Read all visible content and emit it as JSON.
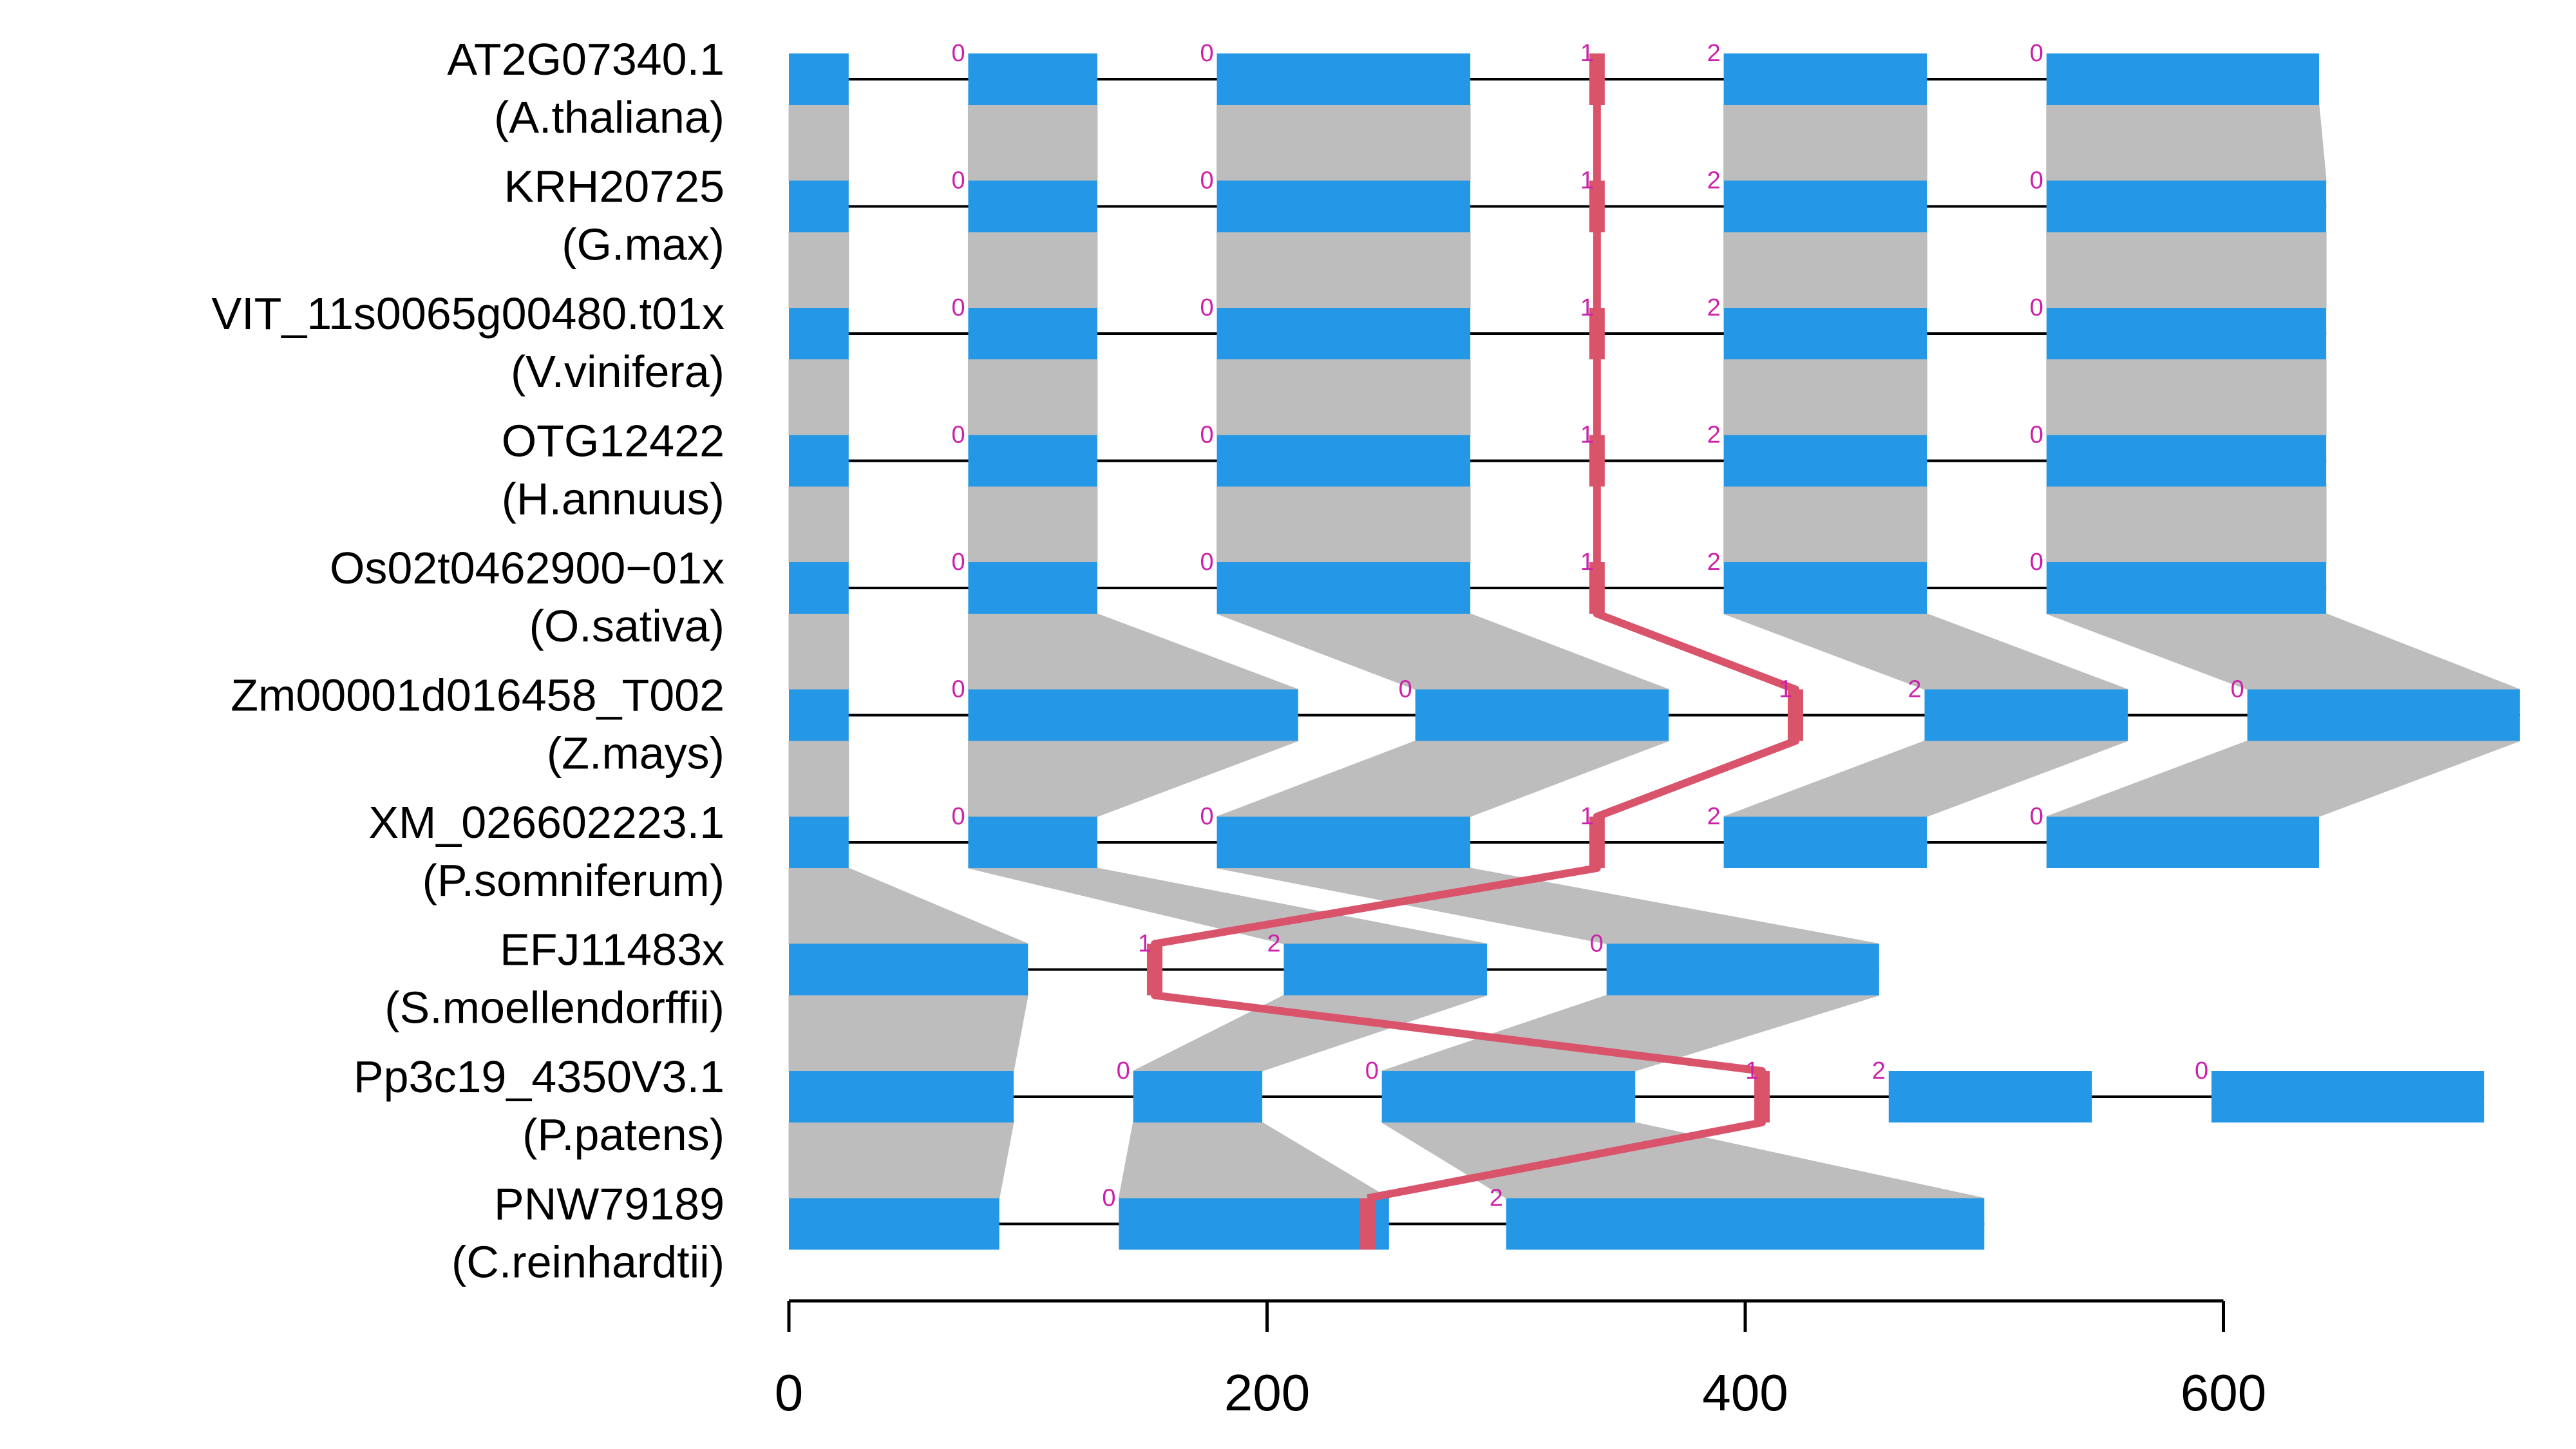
{
  "colors": {
    "exon": "#2497e6",
    "link": "#bdbdbd",
    "highlight": "#d9536b",
    "phase": "#cc22aa",
    "intron": "#000000"
  },
  "axis": {
    "ticks": [
      0,
      200,
      400,
      600
    ]
  },
  "genes": [
    {
      "id": "AT2G07340.1",
      "species": "(A.thaliana)",
      "exons": [
        [
          0,
          25
        ],
        [
          75,
          129
        ],
        [
          179,
          285
        ],
        [
          391,
          476
        ],
        [
          526,
          640
        ]
      ],
      "phases": [
        {
          "pos": 75,
          "label": "0"
        },
        {
          "pos": 179,
          "label": "0"
        },
        {
          "pos": 338,
          "label": "1"
        },
        {
          "pos": 391,
          "label": "2"
        },
        {
          "pos": 526,
          "label": "0"
        }
      ]
    },
    {
      "id": "KRH20725",
      "species": "(G.max)",
      "exons": [
        [
          0,
          25
        ],
        [
          75,
          129
        ],
        [
          179,
          285
        ],
        [
          391,
          476
        ],
        [
          526,
          643
        ]
      ],
      "phases": [
        {
          "pos": 75,
          "label": "0"
        },
        {
          "pos": 179,
          "label": "0"
        },
        {
          "pos": 338,
          "label": "1"
        },
        {
          "pos": 391,
          "label": "2"
        },
        {
          "pos": 526,
          "label": "0"
        }
      ]
    },
    {
      "id": "VIT_11s0065g00480.t01x",
      "species": "(V.vinifera)",
      "exons": [
        [
          0,
          25
        ],
        [
          75,
          129
        ],
        [
          179,
          285
        ],
        [
          391,
          476
        ],
        [
          526,
          643
        ]
      ],
      "phases": [
        {
          "pos": 75,
          "label": "0"
        },
        {
          "pos": 179,
          "label": "0"
        },
        {
          "pos": 338,
          "label": "1"
        },
        {
          "pos": 391,
          "label": "2"
        },
        {
          "pos": 526,
          "label": "0"
        }
      ]
    },
    {
      "id": "OTG12422",
      "species": "(H.annuus)",
      "exons": [
        [
          0,
          25
        ],
        [
          75,
          129
        ],
        [
          179,
          285
        ],
        [
          391,
          476
        ],
        [
          526,
          643
        ]
      ],
      "phases": [
        {
          "pos": 75,
          "label": "0"
        },
        {
          "pos": 179,
          "label": "0"
        },
        {
          "pos": 338,
          "label": "1"
        },
        {
          "pos": 391,
          "label": "2"
        },
        {
          "pos": 526,
          "label": "0"
        }
      ]
    },
    {
      "id": "Os02t0462900−01x",
      "species": "(O.sativa)",
      "exons": [
        [
          0,
          25
        ],
        [
          75,
          129
        ],
        [
          179,
          285
        ],
        [
          391,
          476
        ],
        [
          526,
          643
        ]
      ],
      "phases": [
        {
          "pos": 75,
          "label": "0"
        },
        {
          "pos": 179,
          "label": "0"
        },
        {
          "pos": 338,
          "label": "1"
        },
        {
          "pos": 391,
          "label": "2"
        },
        {
          "pos": 526,
          "label": "0"
        }
      ]
    },
    {
      "id": "Zm00001d016458_T002",
      "species": "(Z.mays)",
      "exons": [
        [
          0,
          25
        ],
        [
          75,
          213
        ],
        [
          262,
          368
        ],
        [
          475,
          560
        ],
        [
          610,
          724
        ]
      ],
      "phases": [
        {
          "pos": 75,
          "label": "0"
        },
        {
          "pos": 262,
          "label": "0"
        },
        {
          "pos": 421,
          "label": "1"
        },
        {
          "pos": 475,
          "label": "2"
        },
        {
          "pos": 610,
          "label": "0"
        }
      ]
    },
    {
      "id": "XM_026602223.1",
      "species": "(P.somniferum)",
      "exons": [
        [
          0,
          25
        ],
        [
          75,
          129
        ],
        [
          179,
          285
        ],
        [
          391,
          476
        ],
        [
          526,
          640
        ]
      ],
      "phases": [
        {
          "pos": 75,
          "label": "0"
        },
        {
          "pos": 179,
          "label": "0"
        },
        {
          "pos": 338,
          "label": "1"
        },
        {
          "pos": 391,
          "label": "2"
        },
        {
          "pos": 526,
          "label": "0"
        }
      ]
    },
    {
      "id": "EFJ11483x",
      "species": "(S.moellendorffii)",
      "exons": [
        [
          0,
          100
        ],
        [
          207,
          292
        ],
        [
          342,
          456
        ]
      ],
      "phases": [
        {
          "pos": 153,
          "label": "1"
        },
        {
          "pos": 207,
          "label": "2"
        },
        {
          "pos": 342,
          "label": "0"
        }
      ]
    },
    {
      "id": "Pp3c19_4350V3.1",
      "species": "(P.patens)",
      "exons": [
        [
          0,
          94
        ],
        [
          144,
          198
        ],
        [
          248,
          354
        ],
        [
          460,
          545
        ],
        [
          595,
          709
        ]
      ],
      "phases": [
        {
          "pos": 144,
          "label": "0"
        },
        {
          "pos": 248,
          "label": "0"
        },
        {
          "pos": 407,
          "label": "1"
        },
        {
          "pos": 460,
          "label": "2"
        },
        {
          "pos": 595,
          "label": "0"
        }
      ]
    },
    {
      "id": "PNW79189",
      "species": "(C.reinhardtii)",
      "exons": [
        [
          0,
          88
        ],
        [
          138,
          251
        ],
        [
          300,
          500
        ]
      ],
      "phases": [
        {
          "pos": 138,
          "label": "0"
        },
        {
          "pos": 300,
          "label": "2"
        }
      ]
    }
  ],
  "highlight_positions": [
    338,
    338,
    338,
    338,
    338,
    421,
    338,
    153,
    407,
    242
  ]
}
